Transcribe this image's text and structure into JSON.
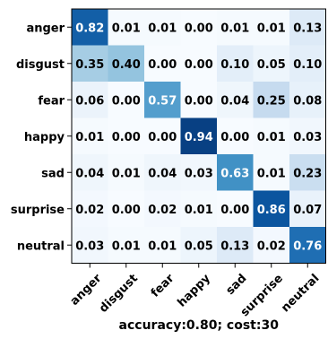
{
  "chart_data": {
    "type": "heatmap",
    "title": "",
    "xlabel": "accuracy:0.80; cost:30",
    "ylabel": "",
    "row_labels": [
      "anger",
      "disgust",
      "fear",
      "happy",
      "sad",
      "surprise",
      "neutral"
    ],
    "col_labels": [
      "anger",
      "disgust",
      "fear",
      "happy",
      "sad",
      "surprise",
      "neutral"
    ],
    "values": [
      [
        0.82,
        0.01,
        0.01,
        0.0,
        0.01,
        0.01,
        0.13
      ],
      [
        0.35,
        0.4,
        0.0,
        0.0,
        0.1,
        0.05,
        0.1
      ],
      [
        0.06,
        0.0,
        0.57,
        0.0,
        0.04,
        0.25,
        0.08
      ],
      [
        0.01,
        0.0,
        0.0,
        0.94,
        0.0,
        0.01,
        0.03
      ],
      [
        0.04,
        0.01,
        0.04,
        0.03,
        0.63,
        0.01,
        0.23
      ],
      [
        0.02,
        0.0,
        0.02,
        0.01,
        0.0,
        0.86,
        0.07
      ],
      [
        0.03,
        0.01,
        0.01,
        0.05,
        0.13,
        0.02,
        0.76
      ]
    ],
    "colormap": "Blues",
    "value_range": [
      0,
      1
    ],
    "grid": false
  }
}
